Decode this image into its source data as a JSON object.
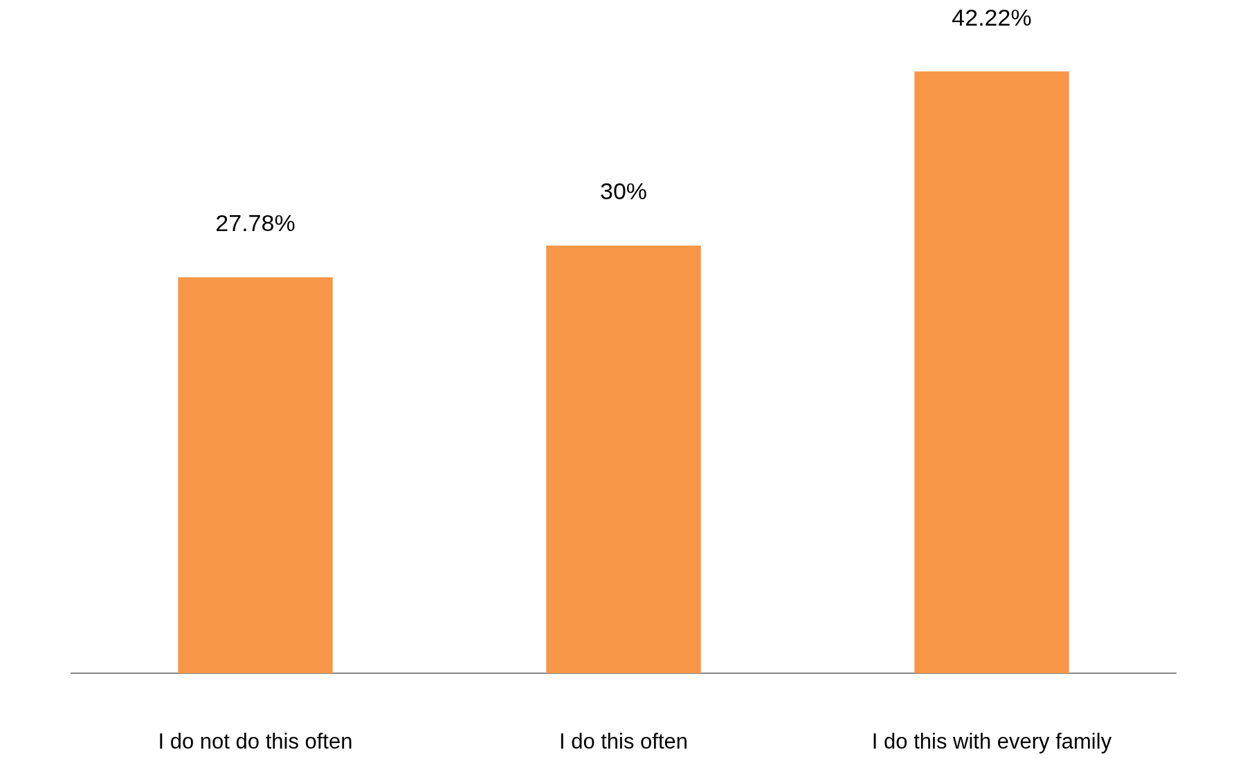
{
  "chart_data": {
    "type": "bar",
    "categories": [
      "I do not do this often",
      "I do this often",
      "I do this with every family"
    ],
    "values": [
      27.78,
      30,
      42.22
    ],
    "value_labels": [
      "27.78%",
      "30%",
      "42.22%"
    ],
    "color": "#f79646",
    "tick_labels": "x"
  }
}
